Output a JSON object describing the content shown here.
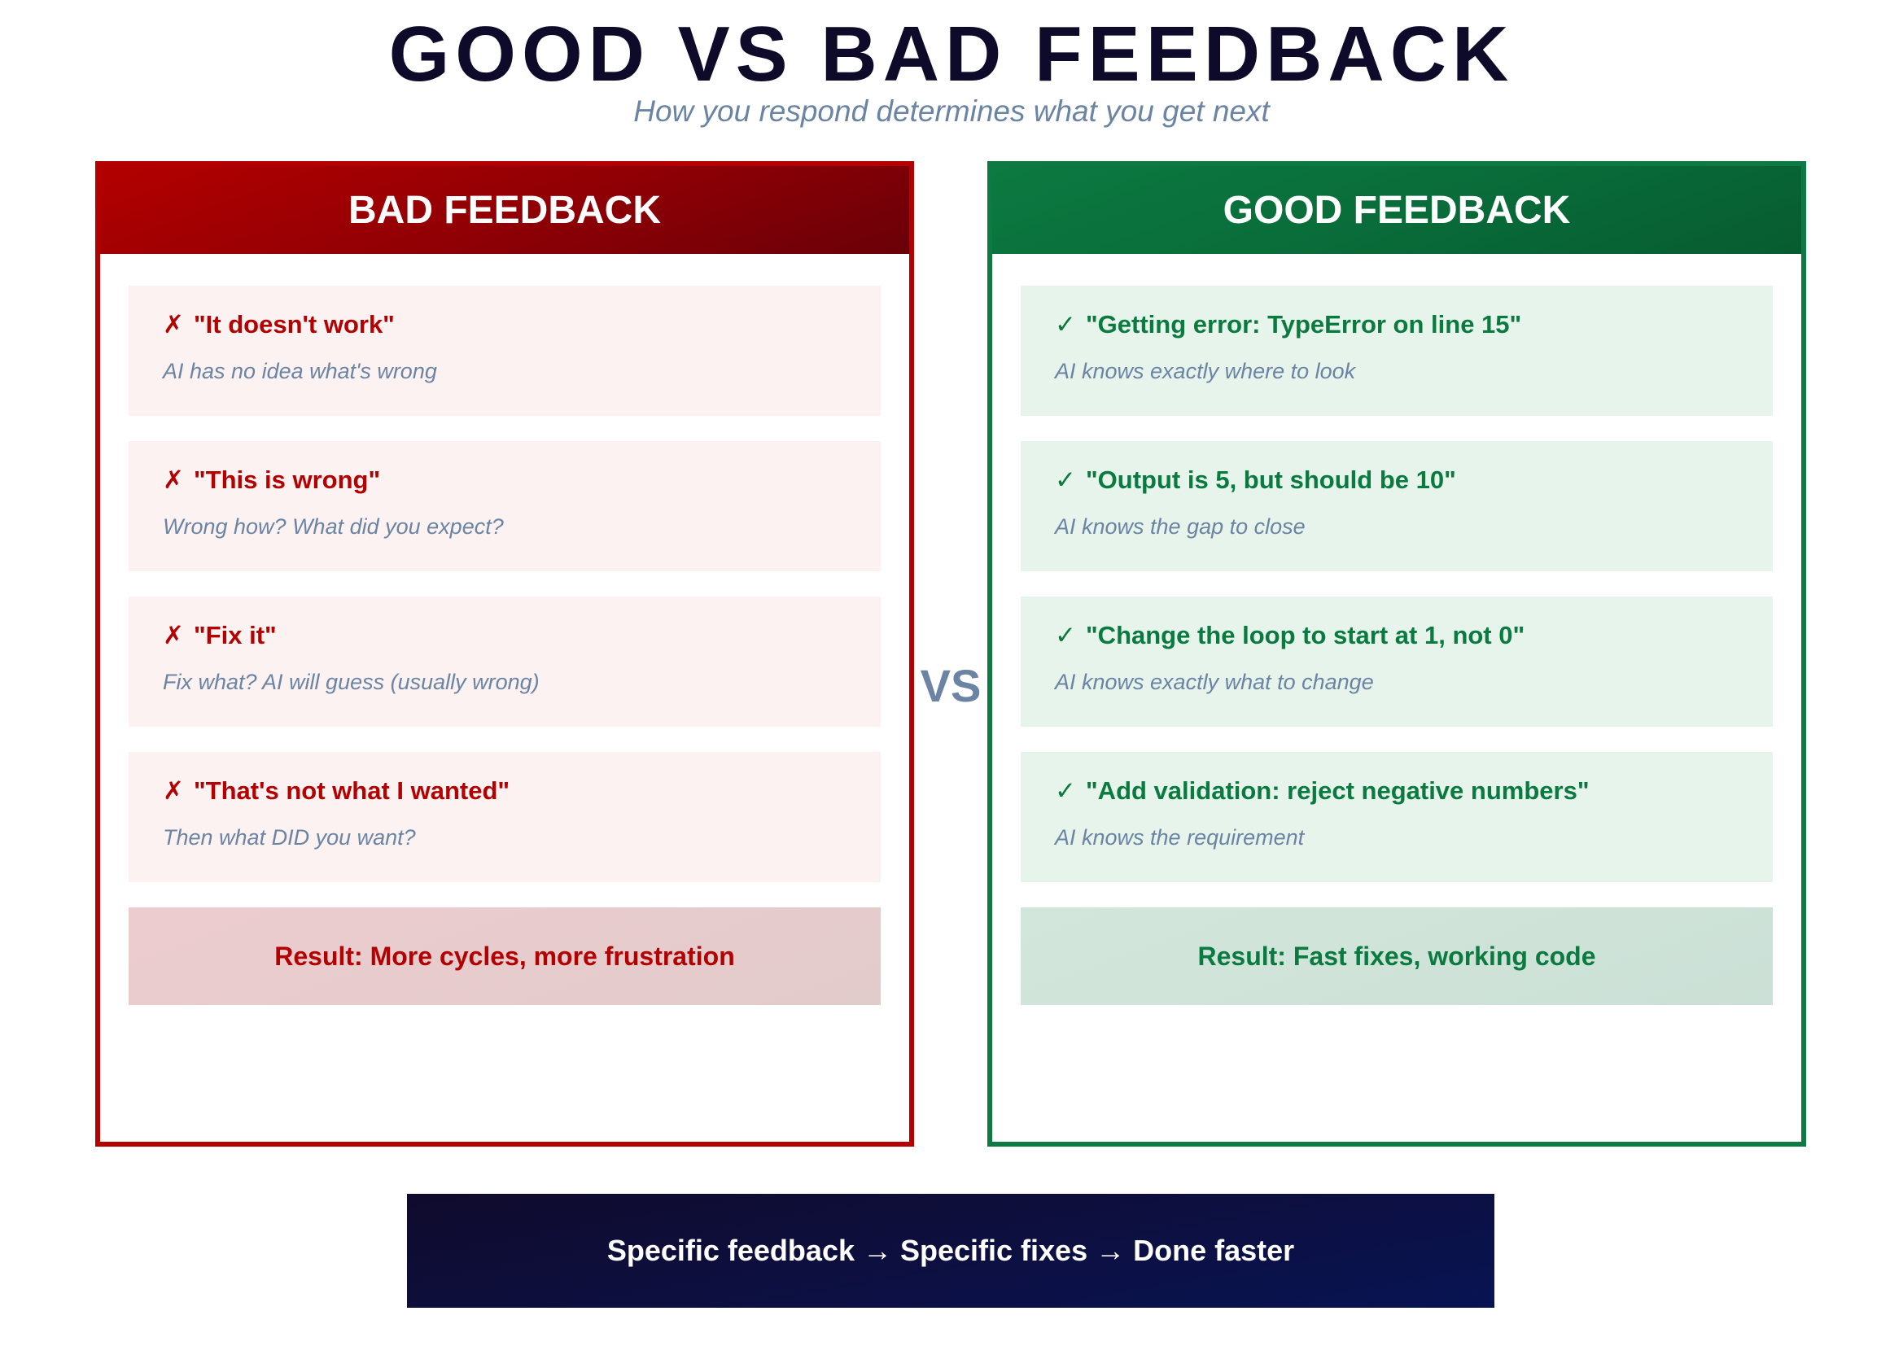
{
  "header": {
    "title": "GOOD VS BAD FEEDBACK",
    "subtitle": "How you respond determines what you get next"
  },
  "colors": {
    "bad_accent": "#b30000",
    "bad_card_bg": "#fdf2f2",
    "bad_result_bg": "#e8cccc",
    "good_accent": "#0b7a40",
    "good_card_bg": "#e6f4eb",
    "good_result_bg": "#cde3d8",
    "secondary_text": "#6b84a3",
    "title": "#0d0a2a",
    "banner_bg": "#0a1452"
  },
  "bad_panel": {
    "heading": "BAD FEEDBACK",
    "mark_icon": "cross-mark-icon",
    "mark": "✗",
    "items": [
      {
        "quote": "\"It doesn't work\"",
        "explanation": "AI has no idea what's wrong"
      },
      {
        "quote": "\"This is wrong\"",
        "explanation": "Wrong how? What did you expect?"
      },
      {
        "quote": "\"Fix it\"",
        "explanation": "Fix what? AI will guess (usually wrong)"
      },
      {
        "quote": "\"That's not what I wanted\"",
        "explanation": "Then what DID you want?"
      }
    ],
    "result": "Result: More cycles, more frustration"
  },
  "separator": {
    "label": "VS"
  },
  "good_panel": {
    "heading": "GOOD FEEDBACK",
    "mark_icon": "check-mark-icon",
    "mark": "✓",
    "items": [
      {
        "quote": "\"Getting error: TypeError on line 15\"",
        "explanation": "AI knows exactly where to look"
      },
      {
        "quote": "\"Output is 5, but should be 10\"",
        "explanation": "AI knows the gap to close"
      },
      {
        "quote": "\"Change the loop to start at 1, not 0\"",
        "explanation": "AI knows exactly what to change"
      },
      {
        "quote": "\"Add validation: reject negative numbers\"",
        "explanation": "AI knows the requirement"
      }
    ],
    "result": "Result: Fast fixes, working code"
  },
  "footer": {
    "banner": "Specific feedback → Specific fixes → Done faster"
  }
}
